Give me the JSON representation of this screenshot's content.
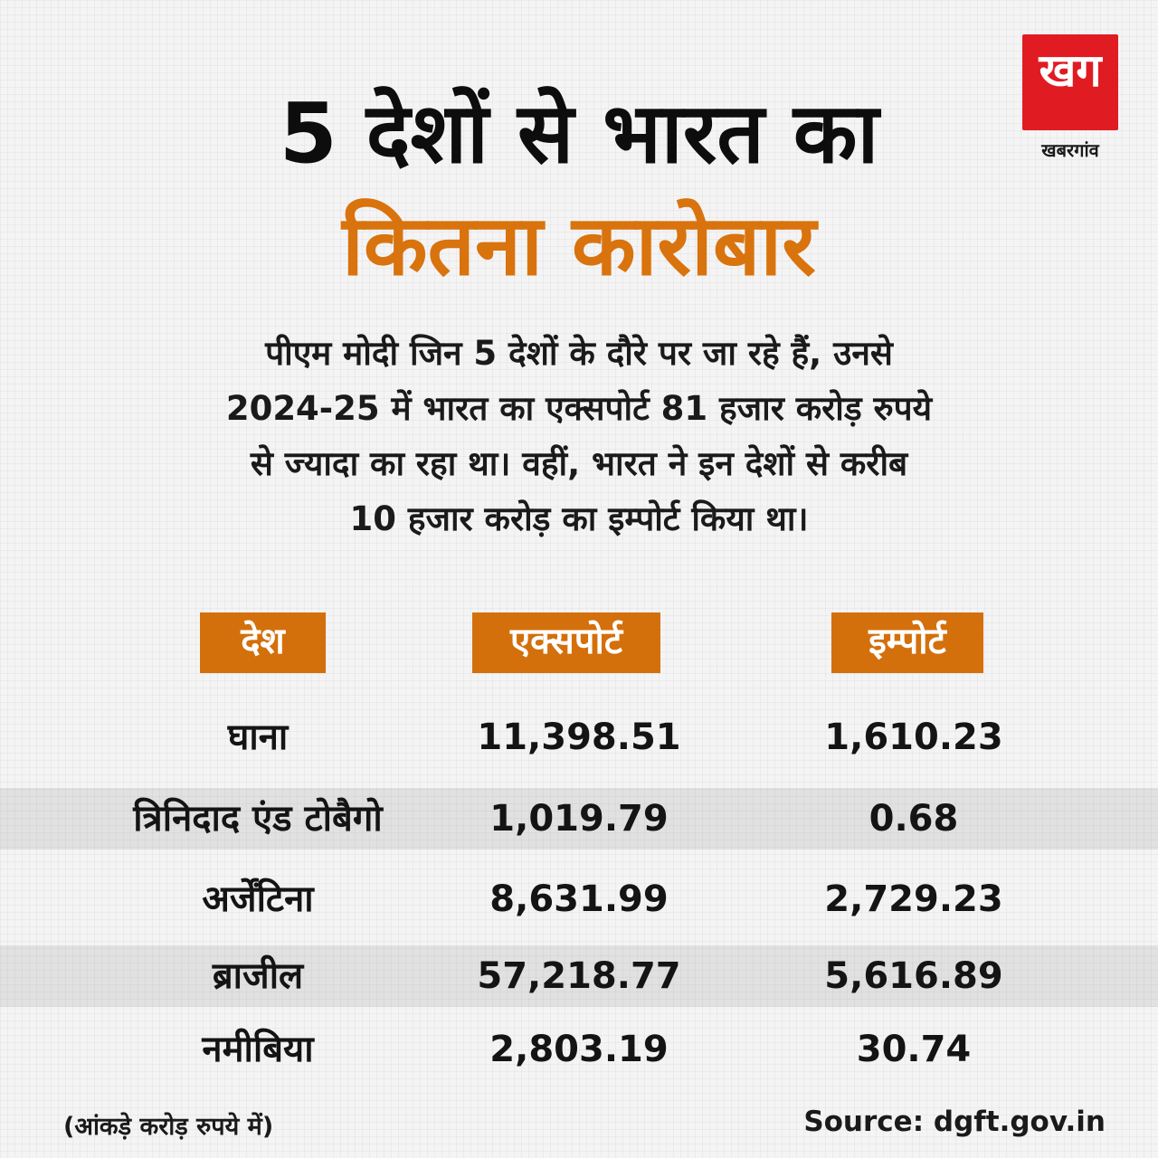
{
  "logo": {
    "mark": "खग",
    "text": "खबरगांव",
    "brand_color": "#e11b22"
  },
  "title": {
    "line1": "5 देशों से भारत का",
    "line2": "कितना कारोबार",
    "line1_color": "#0d0d0d",
    "line2_color": "#d9730d"
  },
  "description": {
    "line1": "पीएम मोदी जिन 5 देशों के दौरे पर जा रहे हैं, उनसे",
    "line2": "2024-25 में भारत का एक्सपोर्ट 81 हजार करोड़ रुपये",
    "line3": "से ज्यादा का रहा था। वहीं, भारत ने इन देशों से करीब",
    "line4": "10 हजार करोड़ का इम्पोर्ट किया था।"
  },
  "table": {
    "header_color": "#d3700c",
    "columns": [
      "देश",
      "एक्सपोर्ट",
      "इम्पोर्ट"
    ],
    "rows": [
      [
        "घाना",
        "11,398.51",
        "1,610.23"
      ],
      [
        "त्रिनिदाद एंड टोबैगो",
        "1,019.79",
        "0.68"
      ],
      [
        "अर्जेंटिना",
        "8,631.99",
        "2,729.23"
      ],
      [
        "ब्राजील",
        "57,218.77",
        "5,616.89"
      ],
      [
        "नमीबिया",
        "2,803.19",
        "30.74"
      ]
    ]
  },
  "footer": {
    "note": "(आंकड़े करोड़ रुपये में)",
    "source": "Source: dgft.gov.in"
  }
}
